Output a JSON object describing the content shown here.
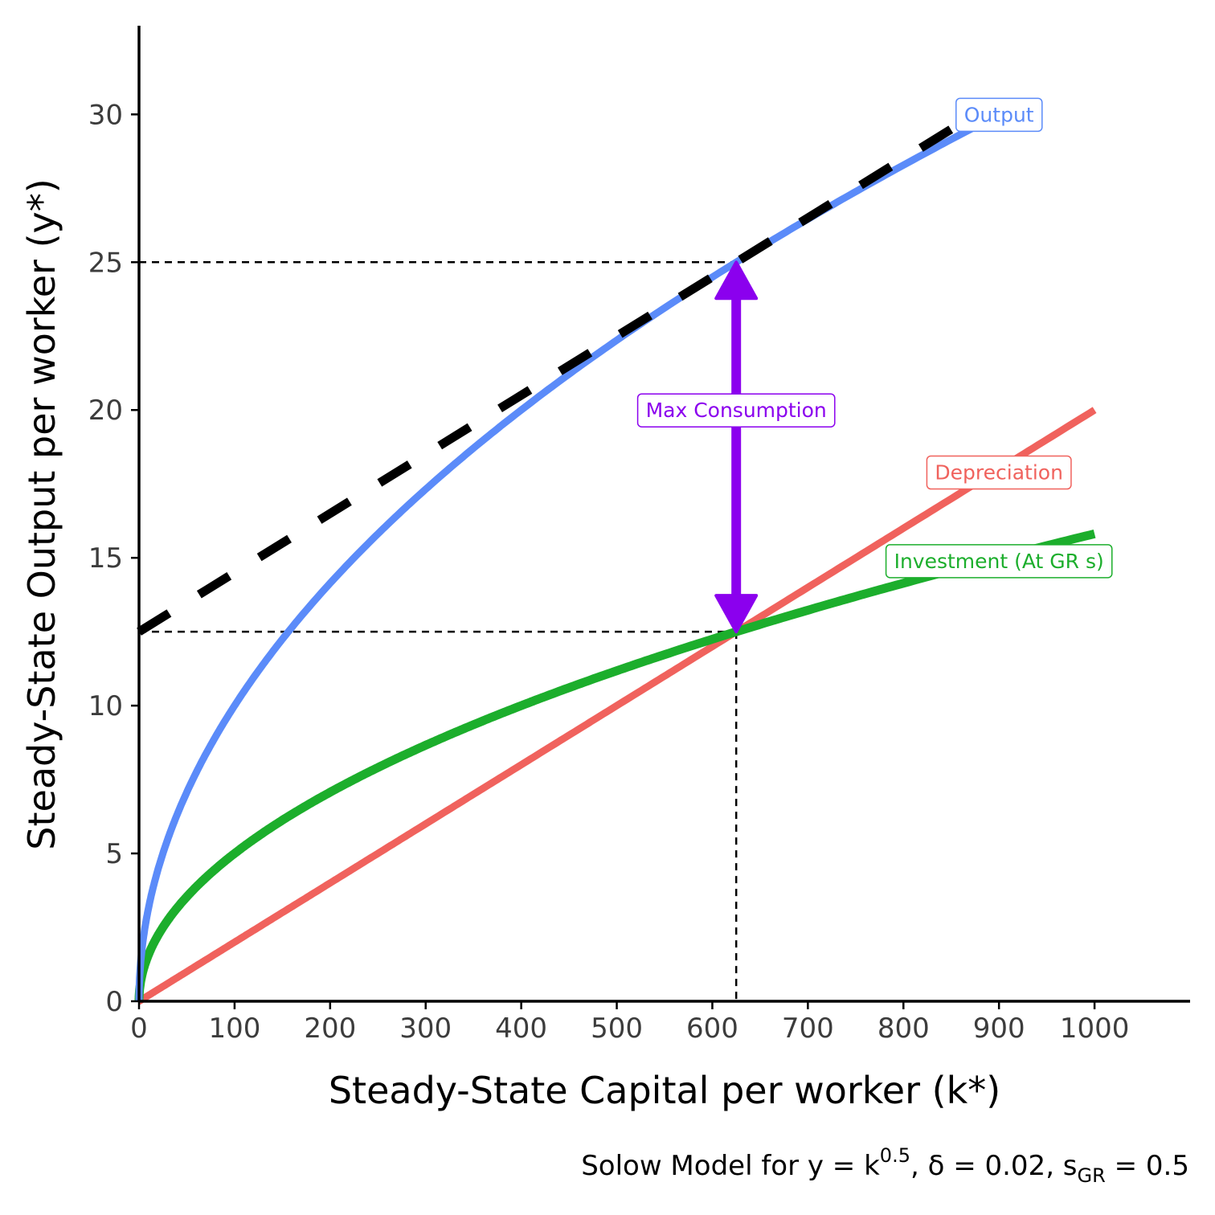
{
  "chart_data": {
    "type": "line",
    "xlabel": "Steady-State Capital per worker (k*)",
    "ylabel": "Steady-State Output per worker (y*)",
    "caption_parts": {
      "prefix": "Solow Model for y = k",
      "exponent": "0.5",
      "middle": ", δ = 0.02, s",
      "subscript": "GR",
      "suffix": " = 0.5"
    },
    "xlim": [
      0,
      1100
    ],
    "ylim": [
      0,
      33
    ],
    "xticks": [
      0,
      100,
      200,
      300,
      400,
      500,
      600,
      700,
      800,
      900,
      1000
    ],
    "yticks": [
      0,
      5,
      10,
      15,
      20,
      25,
      30
    ],
    "grid": false,
    "legend": "none",
    "series": [
      {
        "name": "Output",
        "color": "#5b8bf9",
        "function": "k^0.5",
        "x_range": [
          0,
          1000
        ],
        "sample_points": [
          [
            0,
            0
          ],
          [
            100,
            10
          ],
          [
            400,
            20
          ],
          [
            625,
            25
          ],
          [
            900,
            30
          ]
        ]
      },
      {
        "name": "Depreciation",
        "color": "#f0625d",
        "function": "0.02*k",
        "x_range": [
          0,
          1000
        ],
        "sample_points": [
          [
            0,
            0
          ],
          [
            625,
            12.5
          ],
          [
            1000,
            20
          ]
        ]
      },
      {
        "name": "Investment (At GR s)",
        "color": "#1cae2c",
        "function": "0.5*k^0.5",
        "x_range": [
          0,
          1000
        ],
        "sample_points": [
          [
            0,
            0
          ],
          [
            100,
            5
          ],
          [
            400,
            10
          ],
          [
            625,
            12.5
          ],
          [
            1000,
            15.81
          ]
        ]
      }
    ],
    "tangent_line": {
      "color": "#000000",
      "intercept": 12.5,
      "slope": 0.02,
      "x_range": [
        0,
        850
      ]
    },
    "golden_rule": {
      "k": 625,
      "y": 25,
      "investment": 12.5
    },
    "annotation": {
      "text": "Max Consumption",
      "color": "#8b00ee",
      "from": [
        625,
        12.5
      ],
      "to": [
        625,
        25
      ],
      "label_y": 20
    }
  }
}
